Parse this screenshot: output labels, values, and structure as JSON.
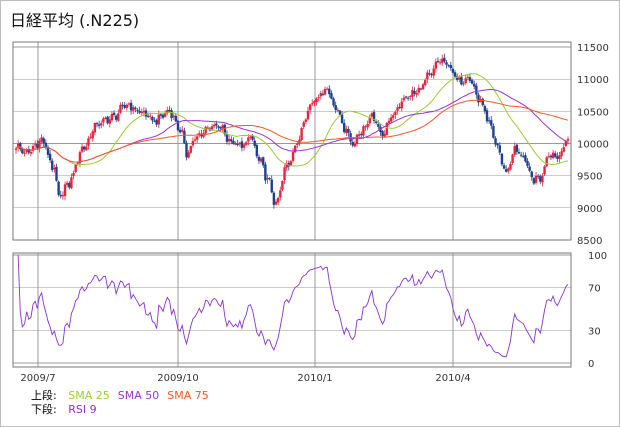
{
  "title": "日経平均 (.N225)",
  "colors": {
    "up_candle": "#e8243c",
    "down_candle": "#1f3f8f",
    "sma25": "#99cc33",
    "sma50": "#9933cc",
    "sma75": "#ff5522",
    "rsi": "#8833cc",
    "grid": "#999999",
    "panel_border": "#777777"
  },
  "legend": {
    "upper_label": "上段:",
    "lower_label": "下段:",
    "upper_items": [
      {
        "label": "SMA 25",
        "color": "#99cc33"
      },
      {
        "label": "SMA 50",
        "color": "#9933cc"
      },
      {
        "label": "SMA 75",
        "color": "#ff5522"
      }
    ],
    "lower_items": [
      {
        "label": "RSI 9",
        "color": "#8833cc"
      }
    ]
  },
  "chart_data": [
    {
      "type": "candlestick",
      "ylim": [
        8500,
        11500
      ],
      "y_ticks": [
        "11500",
        "11000",
        "10500",
        "10000",
        "9500",
        "9000",
        "8500"
      ],
      "x_ticks": [
        "2009/7",
        "2009/10",
        "2010/1",
        "2010/4"
      ],
      "candle_count": 260,
      "close_anchors": [
        [
          0,
          9950
        ],
        [
          5,
          9850
        ],
        [
          12,
          10050
        ],
        [
          18,
          9600
        ],
        [
          20,
          9150
        ],
        [
          24,
          9350
        ],
        [
          32,
          9950
        ],
        [
          38,
          10300
        ],
        [
          45,
          10400
        ],
        [
          52,
          10600
        ],
        [
          58,
          10500
        ],
        [
          65,
          10350
        ],
        [
          72,
          10500
        ],
        [
          78,
          10150
        ],
        [
          80,
          9850
        ],
        [
          85,
          10100
        ],
        [
          90,
          10250
        ],
        [
          96,
          10250
        ],
        [
          100,
          10050
        ],
        [
          106,
          9950
        ],
        [
          110,
          10100
        ],
        [
          114,
          9750
        ],
        [
          118,
          9450
        ],
        [
          122,
          9050
        ],
        [
          127,
          9650
        ],
        [
          132,
          10000
        ],
        [
          136,
          10450
        ],
        [
          140,
          10700
        ],
        [
          146,
          10850
        ],
        [
          150,
          10550
        ],
        [
          155,
          10200
        ],
        [
          158,
          10000
        ],
        [
          162,
          10200
        ],
        [
          167,
          10400
        ],
        [
          172,
          10150
        ],
        [
          176,
          10400
        ],
        [
          182,
          10700
        ],
        [
          188,
          10800
        ],
        [
          194,
          11050
        ],
        [
          199,
          11300
        ],
        [
          203,
          11200
        ],
        [
          208,
          10950
        ],
        [
          212,
          11050
        ],
        [
          218,
          10650
        ],
        [
          222,
          10300
        ],
        [
          225,
          10000
        ],
        [
          230,
          9550
        ],
        [
          234,
          9900
        ],
        [
          238,
          9800
        ],
        [
          242,
          9450
        ],
        [
          246,
          9450
        ],
        [
          250,
          9850
        ],
        [
          254,
          9800
        ],
        [
          259,
          10050
        ]
      ],
      "overlays": [
        {
          "name": "SMA 25",
          "period": 25,
          "color": "#99cc33"
        },
        {
          "name": "SMA 50",
          "period": 50,
          "color": "#9933cc"
        },
        {
          "name": "SMA 75",
          "period": 75,
          "color": "#ff5522"
        }
      ]
    },
    {
      "type": "line",
      "series_name": "RSI 9",
      "ylim": [
        0,
        100
      ],
      "y_ticks": [
        100,
        70,
        30,
        0
      ],
      "x_ticks": [
        "2009/7",
        "2009/10",
        "2010/1",
        "2010/4"
      ],
      "period": 9
    }
  ]
}
